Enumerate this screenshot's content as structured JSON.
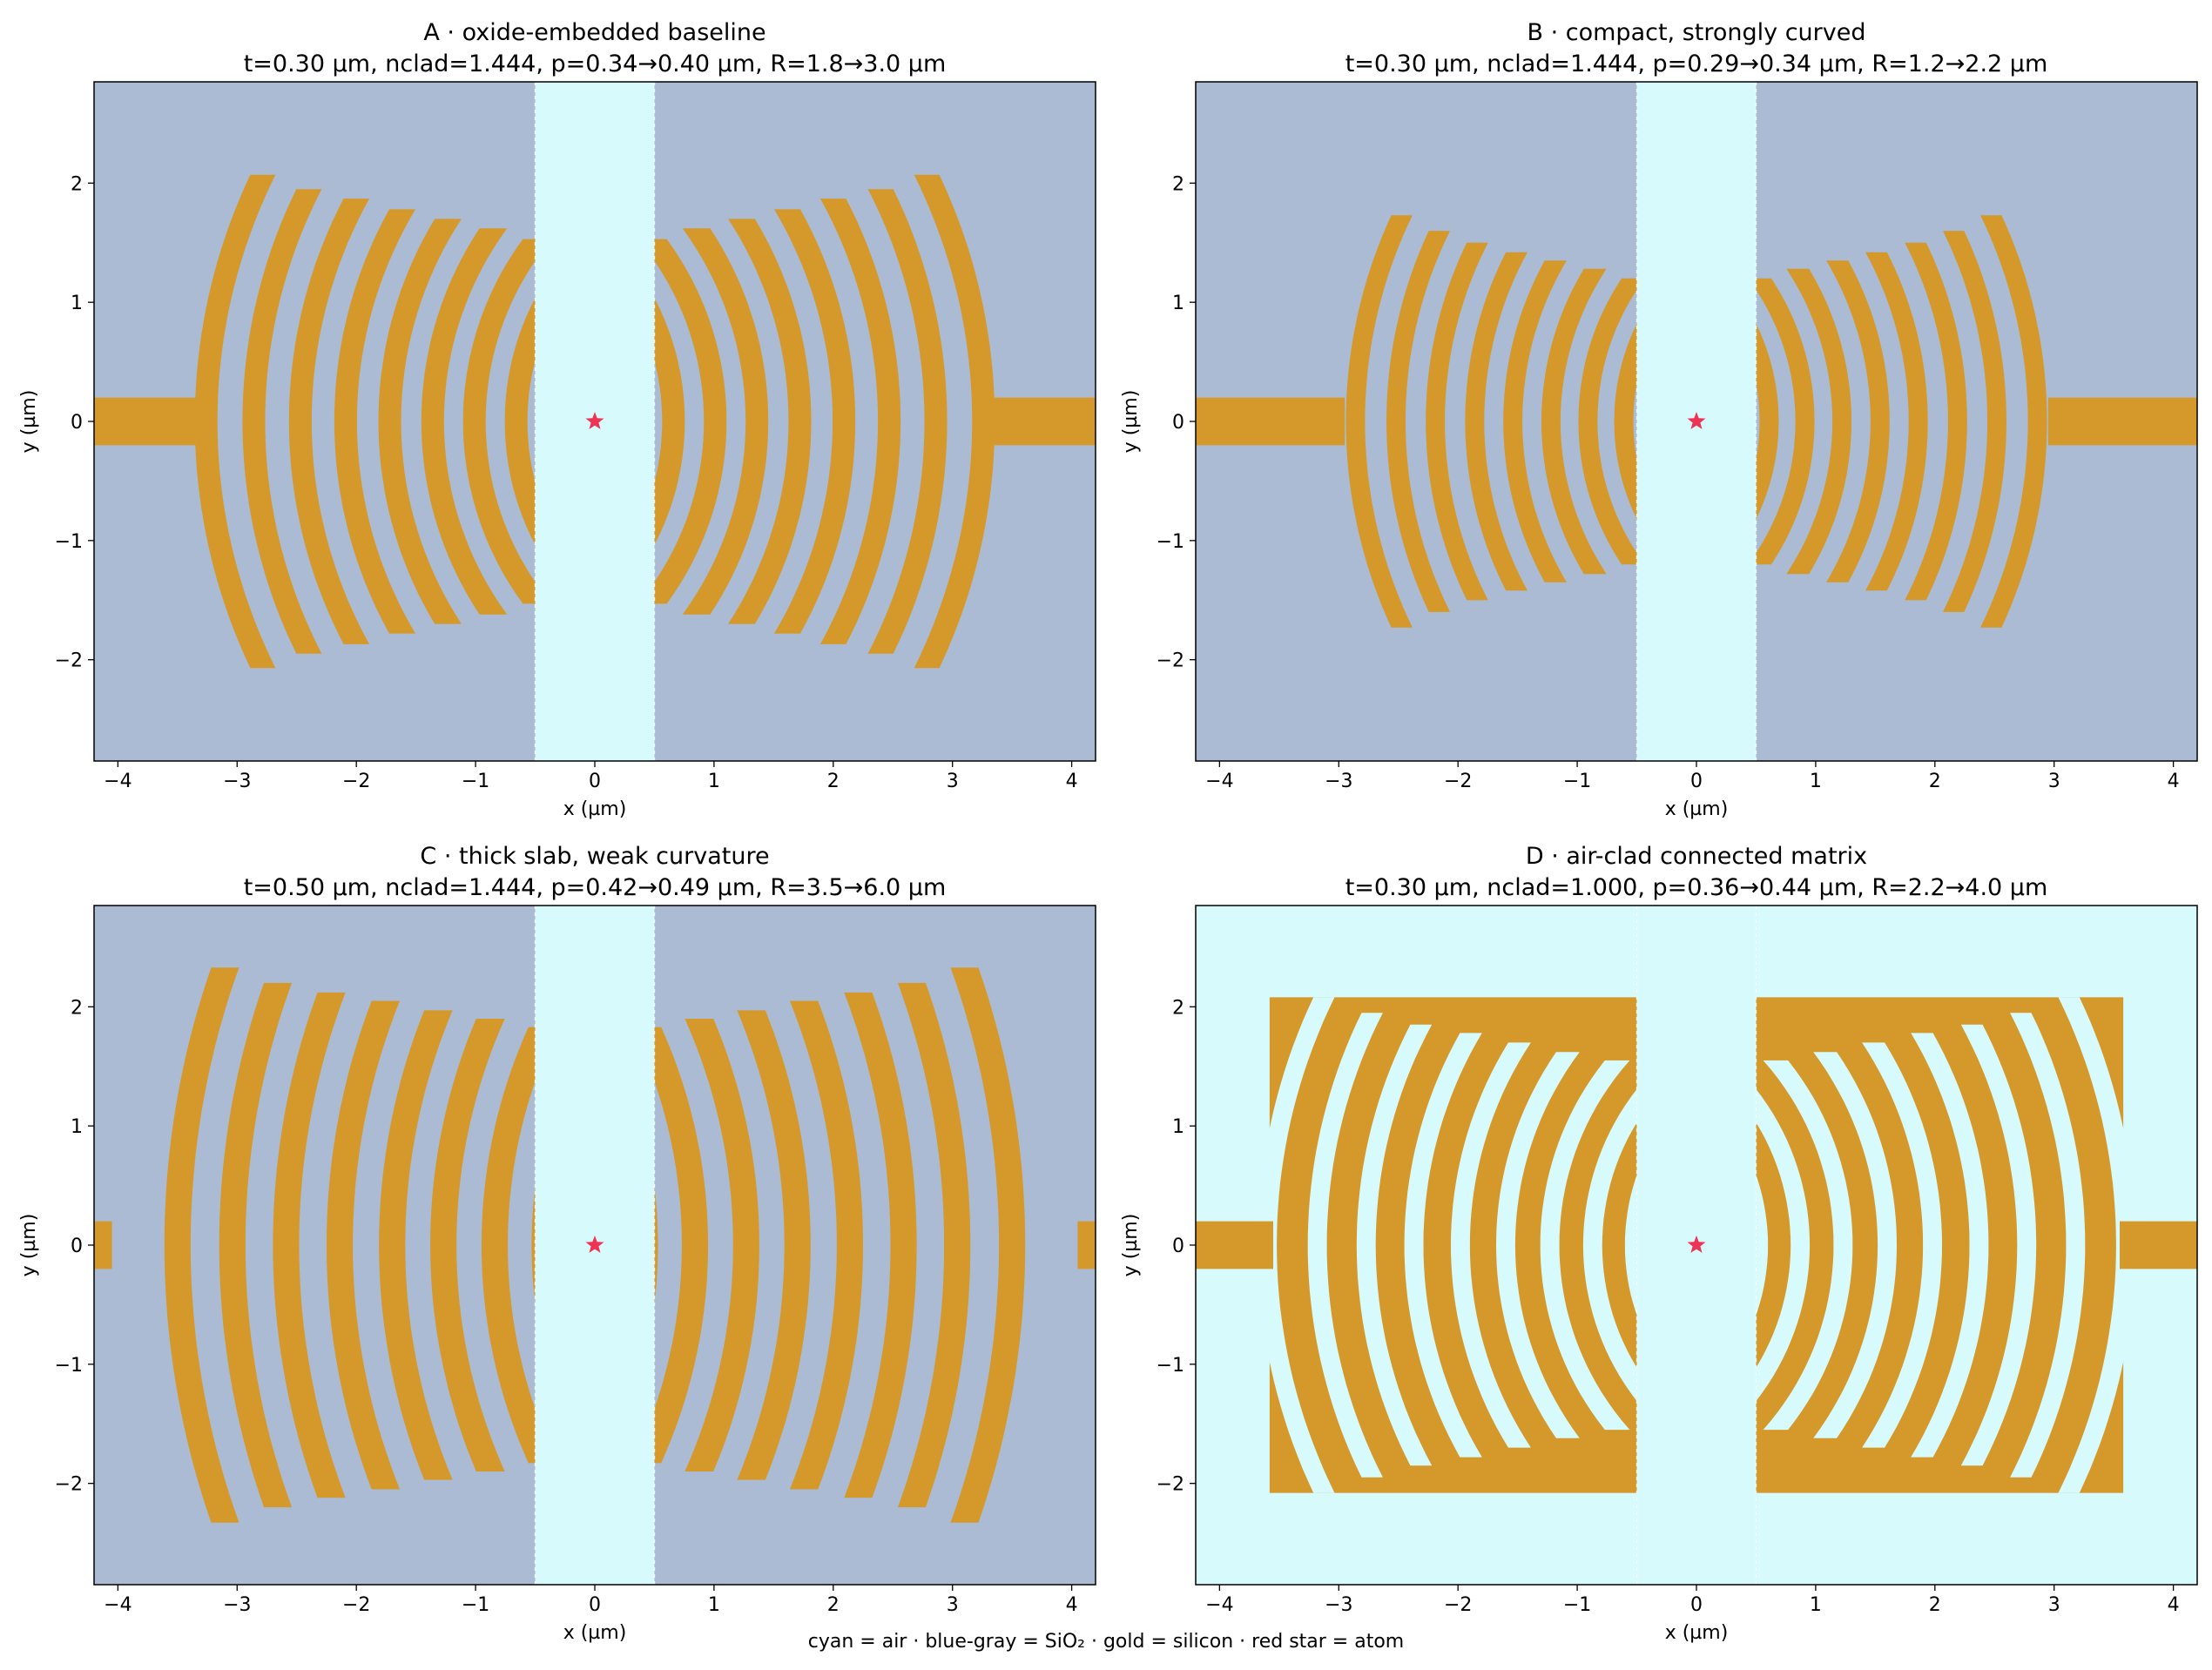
{
  "caption": "cyan = air · blue-gray = SiO₂ · gold = silicon · red star = atom",
  "colors": {
    "air": "#d7fafc",
    "oxide": "#aabbd3",
    "silicon": "#d4992a",
    "atom": "#ee3355"
  },
  "chart_data": [
    {
      "type": "heatmap",
      "title": "A · oxide-embedded baseline",
      "subtitle": "t=0.30 µm, nclad=1.444, p=0.34→0.40 µm, R=1.8→3.0 µm",
      "xlabel": "x (µm)",
      "ylabel": "y (µm)",
      "xlim": [
        -4.2,
        4.2
      ],
      "ylim": [
        -2.85,
        2.85
      ],
      "xticks": [
        -4,
        -3,
        -2,
        -1,
        0,
        1,
        2,
        3,
        4
      ],
      "yticks": [
        -2,
        -1,
        0,
        1,
        2
      ],
      "cladding": "oxide",
      "gap_halfwidth": 0.5,
      "waveguide": {
        "inner_x": 3.35,
        "halfwidth": 0.2
      },
      "connected": false,
      "ring_width": 0.19,
      "rings": [
        {
          "r": 1.8,
          "ymax": 1.35
        },
        {
          "r": 2.14,
          "ymax": 1.45
        },
        {
          "r": 2.49,
          "ymax": 1.53
        },
        {
          "r": 2.84,
          "ymax": 1.62
        },
        {
          "r": 3.2,
          "ymax": 1.7
        },
        {
          "r": 3.57,
          "ymax": 1.78
        },
        {
          "r": 3.95,
          "ymax": 1.87
        },
        {
          "r": 4.34,
          "ymax": 1.95
        },
        {
          "r": 4.74,
          "ymax": 2.07
        }
      ],
      "centers": [
        -1.48,
        1.48
      ],
      "atom": [
        0,
        0
      ]
    },
    {
      "type": "heatmap",
      "title": "B · compact, strongly curved",
      "subtitle": "t=0.30 µm, nclad=1.444, p=0.29→0.34 µm, R=1.2→2.2 µm",
      "xlabel": "x (µm)",
      "ylabel": "y (µm)",
      "xlim": [
        -4.2,
        4.2
      ],
      "ylim": [
        -2.85,
        2.85
      ],
      "xticks": [
        -4,
        -3,
        -2,
        -1,
        0,
        1,
        2,
        3,
        4
      ],
      "yticks": [
        -2,
        -1,
        0,
        1,
        2
      ],
      "cladding": "oxide",
      "gap_halfwidth": 0.5,
      "waveguide": {
        "inner_x": 2.95,
        "halfwidth": 0.2
      },
      "connected": false,
      "ring_width": 0.16,
      "rings": [
        {
          "r": 1.2,
          "ymax": 0.95
        },
        {
          "r": 1.49,
          "ymax": 1.05
        },
        {
          "r": 1.79,
          "ymax": 1.13
        },
        {
          "r": 2.09,
          "ymax": 1.2
        },
        {
          "r": 2.4,
          "ymax": 1.28
        },
        {
          "r": 2.72,
          "ymax": 1.35
        },
        {
          "r": 3.04,
          "ymax": 1.42
        },
        {
          "r": 3.37,
          "ymax": 1.5
        },
        {
          "r": 3.7,
          "ymax": 1.6
        },
        {
          "r": 4.04,
          "ymax": 1.73
        }
      ],
      "centers": [
        -1.18,
        1.18
      ],
      "atom": [
        0,
        0
      ]
    },
    {
      "type": "heatmap",
      "title": "C · thick slab, weak curvature",
      "subtitle": "t=0.50 µm, nclad=1.444, p=0.42→0.49 µm, R=3.5→6.0 µm",
      "xlabel": "x (µm)",
      "ylabel": "y (µm)",
      "xlim": [
        -4.2,
        4.2
      ],
      "ylim": [
        -2.85,
        2.85
      ],
      "xticks": [
        -4,
        -3,
        -2,
        -1,
        0,
        1,
        2,
        3,
        4
      ],
      "yticks": [
        -2,
        -1,
        0,
        1,
        2
      ],
      "cladding": "oxide",
      "gap_halfwidth": 0.5,
      "waveguide": {
        "inner_x": 4.05,
        "halfwidth": 0.2
      },
      "connected": false,
      "ring_width": 0.22,
      "rings": [
        {
          "r": 3.5,
          "ymax": 1.65
        },
        {
          "r": 3.92,
          "ymax": 1.75
        },
        {
          "r": 4.34,
          "ymax": 1.83
        },
        {
          "r": 4.77,
          "ymax": 1.9
        },
        {
          "r": 5.2,
          "ymax": 1.97
        },
        {
          "r": 5.64,
          "ymax": 2.05
        },
        {
          "r": 6.09,
          "ymax": 2.12
        },
        {
          "r": 6.54,
          "ymax": 2.2
        },
        {
          "r": 7.0,
          "ymax": 2.33
        }
      ],
      "centers": [
        -3.5,
        3.5
      ],
      "atom": [
        0,
        0
      ]
    },
    {
      "type": "heatmap",
      "title": "D · air-clad connected matrix",
      "subtitle": "t=0.30 µm, nclad=1.000, p=0.36→0.44 µm, R=2.2→4.0 µm",
      "xlabel": "x (µm)",
      "ylabel": "y (µm)",
      "xlim": [
        -4.2,
        4.2
      ],
      "ylim": [
        -2.85,
        2.85
      ],
      "xticks": [
        -4,
        -3,
        -2,
        -1,
        0,
        1,
        2,
        3,
        4
      ],
      "yticks": [
        -2,
        -1,
        0,
        1,
        2
      ],
      "cladding": "air",
      "gap_halfwidth": 0.5,
      "waveguide": {
        "inner_x": 3.55,
        "halfwidth": 0.2
      },
      "connected": true,
      "matrix": {
        "x_outer": 3.58,
        "ymax": 2.08
      },
      "ring_width": 0.16,
      "rings": [
        {
          "r": 1.7,
          "ymax": 1.4
        },
        {
          "r": 2.05,
          "ymax": 1.47
        },
        {
          "r": 2.41,
          "ymax": 1.55
        },
        {
          "r": 2.78,
          "ymax": 1.62
        },
        {
          "r": 3.16,
          "ymax": 1.7
        },
        {
          "r": 3.55,
          "ymax": 1.78
        },
        {
          "r": 3.95,
          "ymax": 1.85
        },
        {
          "r": 4.36,
          "ymax": 1.95
        },
        {
          "r": 4.78,
          "ymax": 2.08
        }
      ],
      "centers": [
        -1.18,
        1.18
      ],
      "atom": [
        0,
        0
      ]
    }
  ]
}
